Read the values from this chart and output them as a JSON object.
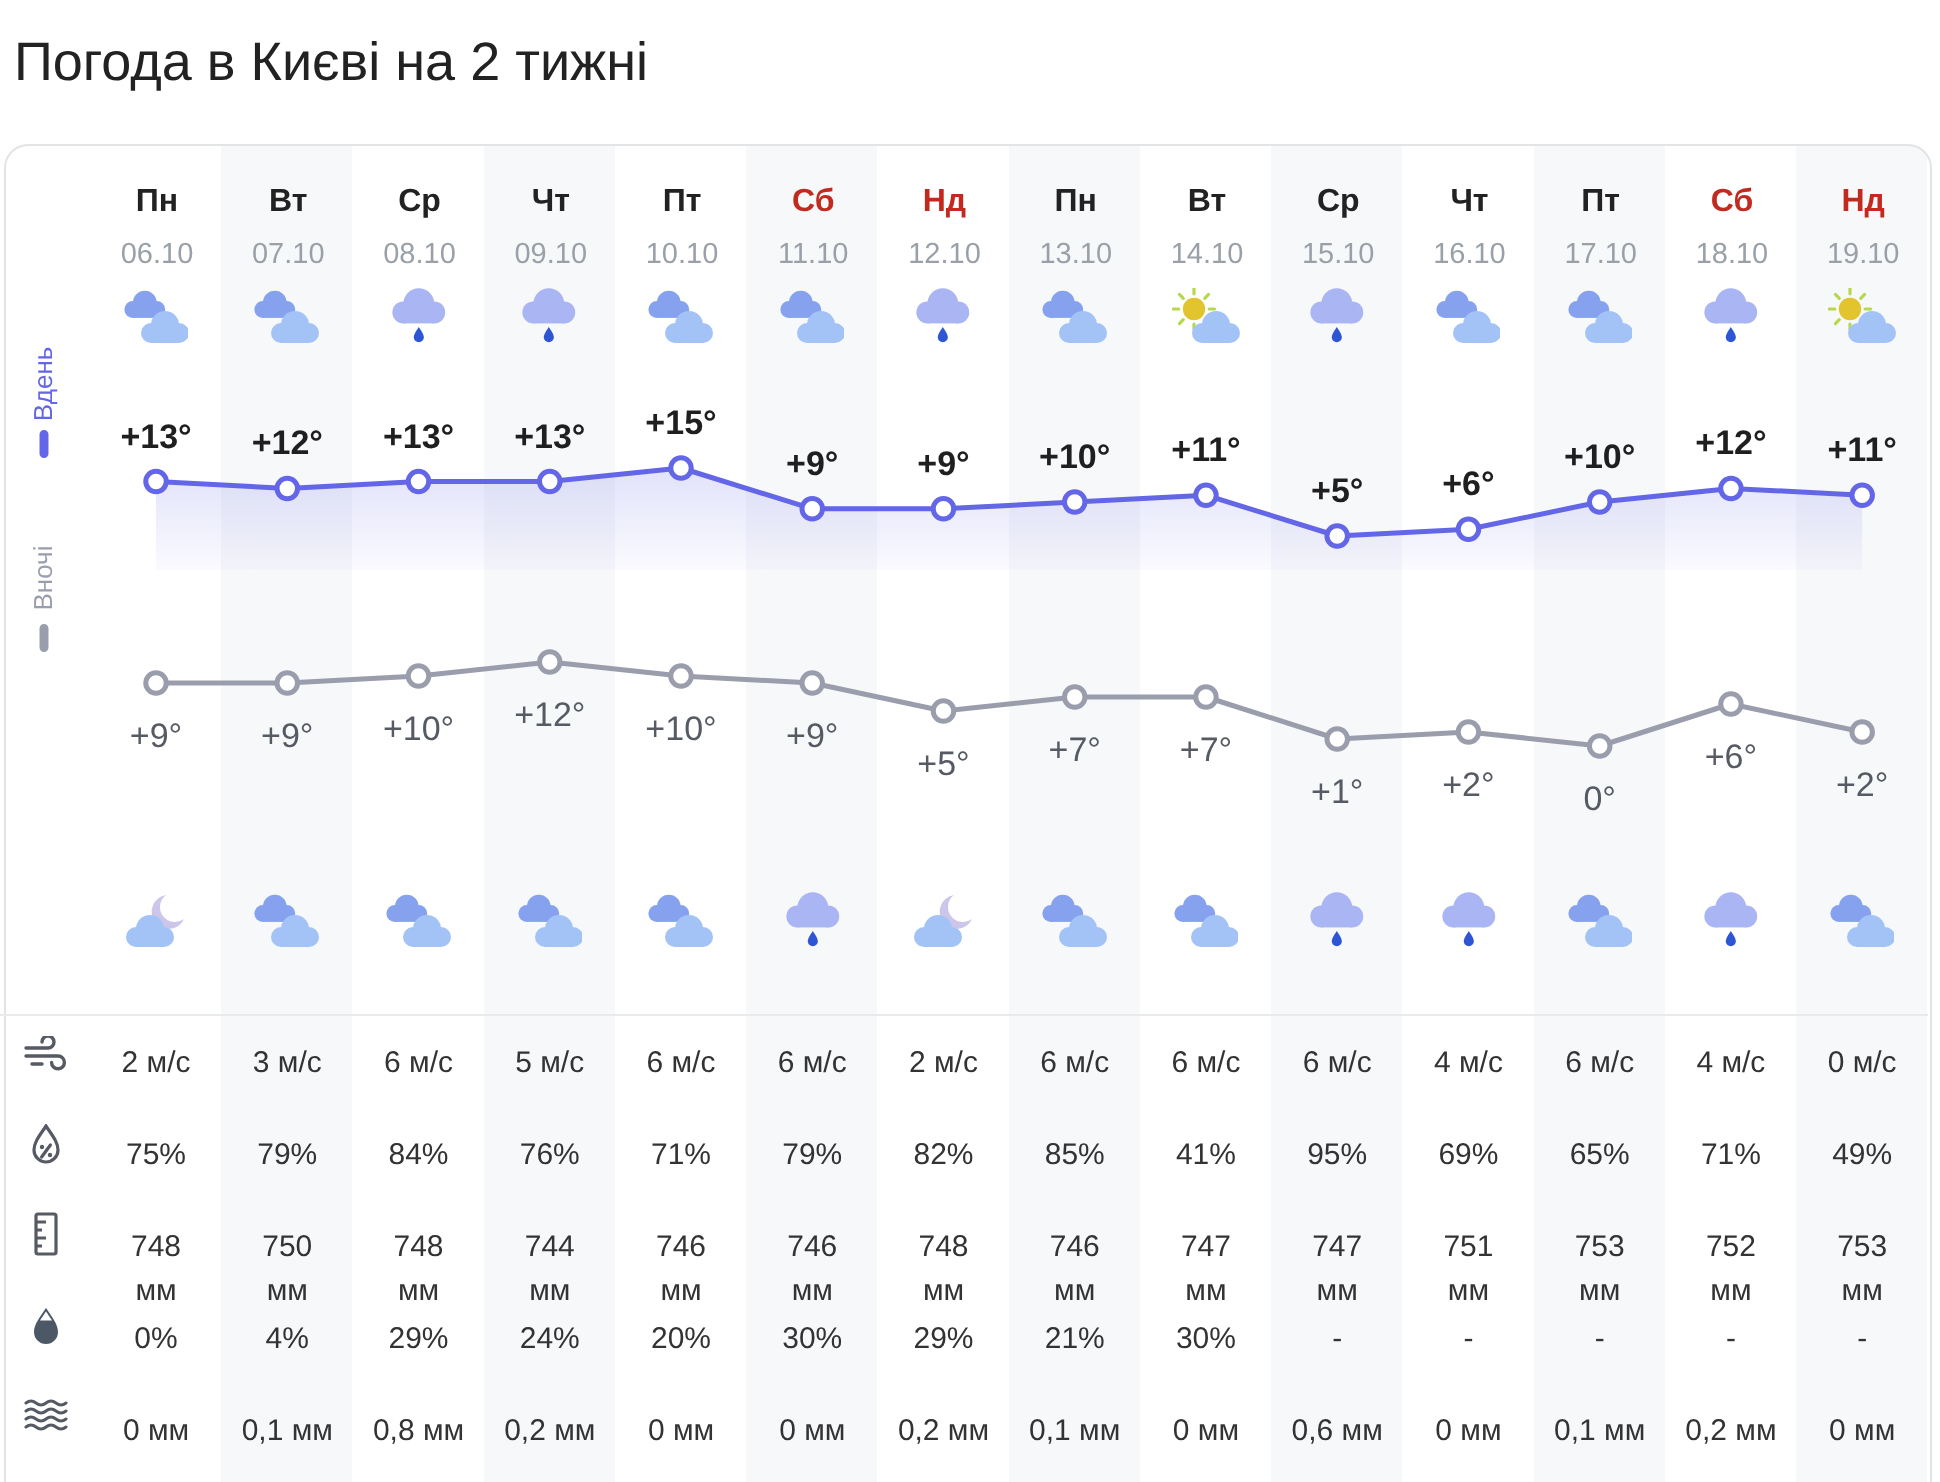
{
  "chart_data": [
    {
      "type": "line",
      "title": "Погода в Києві на 2 тижні",
      "categories": [
        "Пн 06.10",
        "Вт 07.10",
        "Ср 08.10",
        "Чт 09.10",
        "Пт 10.10",
        "Сб 11.10",
        "Нд 12.10",
        "Пн 13.10",
        "Вт 14.10",
        "Ср 15.10",
        "Чт 16.10",
        "Пт 17.10",
        "Сб 18.10",
        "Нд 19.10"
      ],
      "series": [
        {
          "name": "Вдень",
          "type": "area",
          "color": "#6366e6",
          "values": [
            13,
            12,
            13,
            13,
            15,
            9,
            9,
            10,
            11,
            5,
            6,
            10,
            12,
            11
          ],
          "value_labels": [
            "+13°",
            "+12°",
            "+13°",
            "+13°",
            "+15°",
            "+9°",
            "+9°",
            "+10°",
            "+11°",
            "+5°",
            "+6°",
            "+10°",
            "+12°",
            "+11°"
          ]
        }
      ],
      "marker": "circle",
      "legend": "left",
      "tick_labels": "x"
    },
    {
      "type": "line",
      "categories": [
        null,
        null,
        null,
        null,
        null,
        null,
        null,
        null,
        null,
        null,
        null,
        null,
        null,
        null
      ],
      "series": [
        {
          "name": "Вночі",
          "color": "#9a9dab",
          "values": [
            9,
            9,
            10,
            12,
            10,
            9,
            5,
            7,
            7,
            1,
            2,
            0,
            6,
            2
          ],
          "value_labels": [
            "+9°",
            "+9°",
            "+10°",
            "+12°",
            "+10°",
            "+9°",
            "+5°",
            "+7°",
            "+7°",
            "+1°",
            "+2°",
            "0°",
            "+6°",
            "+2°"
          ]
        }
      ],
      "marker": "circle",
      "legend": "left",
      "tick_labels": false
    },
    {
      "type": "other",
      "categories": [
        null,
        null,
        null,
        null,
        null,
        null,
        null,
        null,
        null,
        null,
        null,
        null,
        null,
        null
      ],
      "annotations": [
        "2 м/с",
        "3 м/с",
        "6 м/с",
        "5 м/с",
        "6 м/с",
        "6 м/с",
        "2 м/с",
        "6 м/с",
        "6 м/с",
        "6 м/с",
        "4 м/с",
        "6 м/с",
        "4 м/с",
        "0 м/с",
        "75%",
        "79%",
        "84%",
        "76%",
        "71%",
        "79%",
        "82%",
        "85%",
        "41%",
        "95%",
        "69%",
        "65%",
        "71%",
        "49%",
        "748\nмм",
        "750\nмм",
        "748\nмм",
        "744\nмм",
        "746\nмм",
        "746\nмм",
        "748\nмм",
        "746\nмм",
        "747\nмм",
        "747\nмм",
        "751\nмм",
        "753\nмм",
        "752\nмм",
        "753\nмм",
        "0%",
        "4%",
        "29%",
        "24%",
        "20%",
        "30%",
        "29%",
        "21%",
        "30%",
        "-",
        "-",
        "-",
        "-",
        "-",
        "0 мм",
        "0,1 мм",
        "0,8 мм",
        "0,2 мм",
        "0 мм",
        "0 мм",
        "0,2 мм",
        "0,1 мм",
        "0 мм",
        "0,6 мм",
        "0 мм",
        "0,1 мм",
        "0,2 мм",
        "0 мм"
      ]
    }
  ]
}
